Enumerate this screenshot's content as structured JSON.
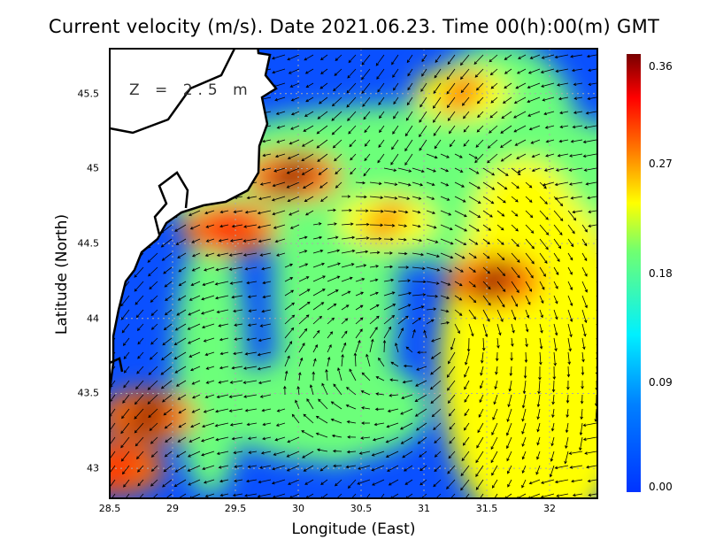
{
  "title": "Current velocity (m/s). Date 2021.06.23. Time 00(h):00(m) GMT",
  "depth_label": "Z = 2.5 m",
  "chart_data": {
    "type": "heatmap",
    "title": "Current velocity (m/s). Date 2021.06.23. Time 00(h):00(m) GMT",
    "xlabel": "Longitude (East)",
    "ylabel": "Latitude (North)",
    "xlim": [
      28.5,
      32.38
    ],
    "ylim": [
      42.8,
      45.8
    ],
    "x_ticks": [
      "28.5",
      "29",
      "29.5",
      "30",
      "30.5",
      "31",
      "31.5",
      "32"
    ],
    "x_tick_values": [
      28.5,
      29,
      29.5,
      30,
      30.5,
      31,
      31.5,
      32
    ],
    "y_ticks": [
      "43",
      "43.5",
      "44",
      "44.5",
      "45",
      "45.5"
    ],
    "y_tick_values": [
      43,
      43.5,
      44,
      44.5,
      45,
      45.5
    ],
    "colorbar": {
      "ticks": [
        "0.00",
        "0.09",
        "0.18",
        "0.27",
        "0.36"
      ],
      "range": [
        0,
        0.36
      ],
      "colors": [
        "#0033ff",
        "#00e5ff",
        "#6cff7a",
        "#ffff00",
        "#ff6a00",
        "#ff0000",
        "#7a0000"
      ]
    },
    "grid": true,
    "hotspots": [
      {
        "lon": 29.95,
        "lat": 44.95,
        "speed": 0.33
      },
      {
        "lon": 29.45,
        "lat": 44.6,
        "speed": 0.32
      },
      {
        "lon": 31.55,
        "lat": 44.25,
        "speed": 0.34
      },
      {
        "lon": 28.8,
        "lat": 43.35,
        "speed": 0.33
      },
      {
        "lon": 31.3,
        "lat": 45.5,
        "speed": 0.27
      },
      {
        "lon": 30.7,
        "lat": 44.65,
        "speed": 0.24
      },
      {
        "lon": 28.55,
        "lat": 43.0,
        "speed": 0.3
      }
    ]
  }
}
